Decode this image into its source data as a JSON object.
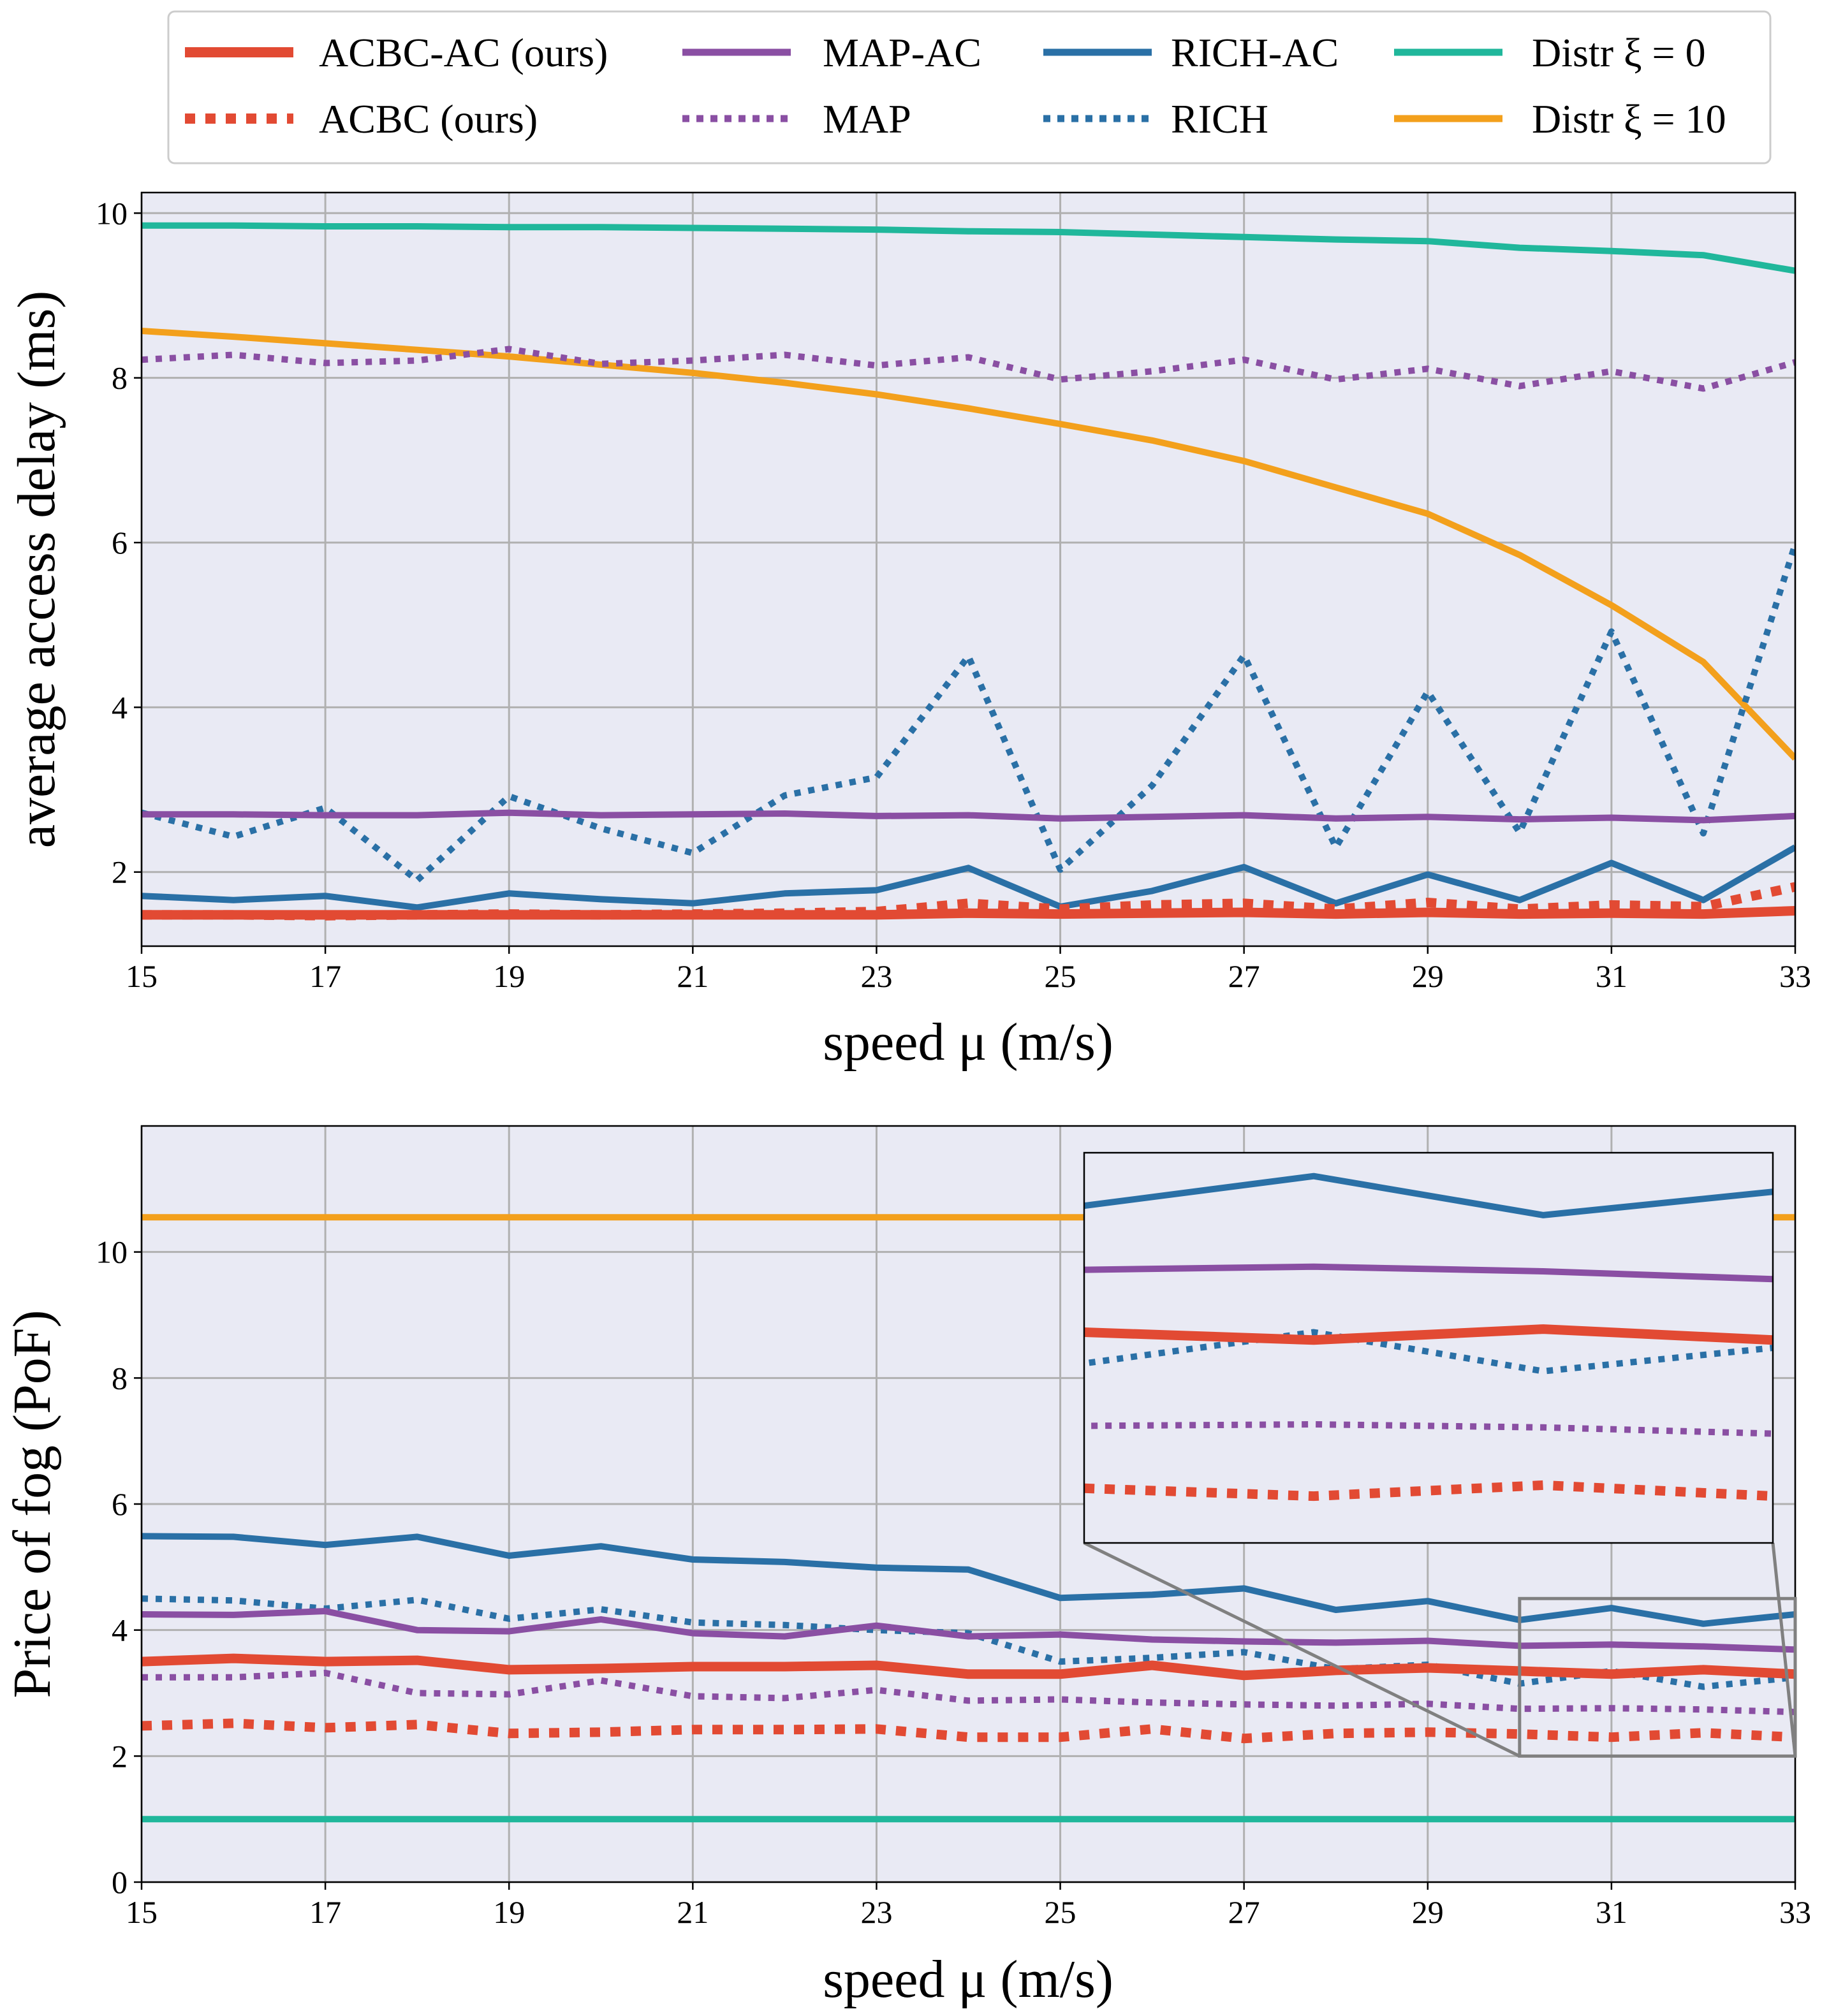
{
  "legend": {
    "placement": "top",
    "entries": [
      {
        "key": "acbc_ac",
        "label": "ACBC-AC (ours)",
        "color": "#e24a33",
        "style": "solid"
      },
      {
        "key": "acbc",
        "label": "ACBC (ours)",
        "color": "#e24a33",
        "style": "dotted"
      },
      {
        "key": "map_ac",
        "label": "MAP-AC",
        "color": "#8a4fa3",
        "style": "solid"
      },
      {
        "key": "map",
        "label": "MAP",
        "color": "#8a4fa3",
        "style": "dotted"
      },
      {
        "key": "rich_ac",
        "label": "RICH-AC",
        "color": "#2a70a6",
        "style": "solid"
      },
      {
        "key": "rich",
        "label": "RICH",
        "color": "#2a70a6",
        "style": "dotted"
      },
      {
        "key": "distr0",
        "label": "Distr ξ = 0",
        "color": "#20b79b",
        "style": "solid"
      },
      {
        "key": "distr10",
        "label": "Distr ξ = 10",
        "color": "#f3a01c",
        "style": "solid"
      }
    ]
  },
  "chart_data": [
    {
      "type": "line",
      "id": "delay",
      "xlabel": "speed μ (m/s)",
      "ylabel": "average access delay (ms)",
      "xlim": [
        15,
        33
      ],
      "ylim": [
        1.1,
        10.25
      ],
      "xticks": [
        "15",
        "17",
        "19",
        "21",
        "23",
        "25",
        "27",
        "29",
        "31",
        "33"
      ],
      "yticks": [
        "2",
        "4",
        "6",
        "8",
        "10"
      ],
      "grid": true,
      "x": [
        15,
        16,
        17,
        18,
        19,
        20,
        21,
        22,
        23,
        24,
        25,
        26,
        27,
        28,
        29,
        30,
        31,
        32,
        33
      ],
      "series": [
        {
          "key": "distr0",
          "values": [
            9.85,
            9.85,
            9.84,
            9.84,
            9.83,
            9.83,
            9.82,
            9.81,
            9.8,
            9.78,
            9.77,
            9.74,
            9.71,
            9.68,
            9.66,
            9.58,
            9.54,
            9.49,
            9.3
          ]
        },
        {
          "key": "distr10",
          "values": [
            8.57,
            8.5,
            8.42,
            8.34,
            8.26,
            8.16,
            8.06,
            7.94,
            7.8,
            7.63,
            7.44,
            7.24,
            6.99,
            6.67,
            6.35,
            5.85,
            5.24,
            4.55,
            3.38
          ]
        },
        {
          "key": "map",
          "values": [
            8.22,
            8.28,
            8.18,
            8.21,
            8.35,
            8.17,
            8.21,
            8.28,
            8.15,
            8.25,
            7.98,
            8.08,
            8.22,
            7.98,
            8.11,
            7.9,
            8.08,
            7.87,
            8.19
          ]
        },
        {
          "key": "rich",
          "values": [
            2.72,
            2.43,
            2.78,
            1.9,
            2.92,
            2.53,
            2.23,
            2.93,
            3.15,
            4.62,
            2.03,
            3.05,
            4.63,
            2.3,
            4.19,
            2.48,
            4.92,
            2.47,
            5.98
          ]
        },
        {
          "key": "map_ac",
          "values": [
            2.7,
            2.7,
            2.69,
            2.69,
            2.72,
            2.69,
            2.7,
            2.71,
            2.68,
            2.69,
            2.65,
            2.67,
            2.69,
            2.65,
            2.67,
            2.64,
            2.66,
            2.63,
            2.68
          ]
        },
        {
          "key": "rich_ac",
          "values": [
            1.71,
            1.66,
            1.71,
            1.57,
            1.74,
            1.67,
            1.62,
            1.74,
            1.78,
            2.05,
            1.58,
            1.77,
            2.06,
            1.62,
            1.97,
            1.66,
            2.11,
            1.66,
            2.3
          ]
        },
        {
          "key": "acbc",
          "values": [
            1.48,
            1.48,
            1.47,
            1.48,
            1.49,
            1.48,
            1.49,
            1.5,
            1.52,
            1.62,
            1.55,
            1.6,
            1.62,
            1.55,
            1.63,
            1.55,
            1.6,
            1.58,
            1.82
          ]
        },
        {
          "key": "acbc_ac",
          "values": [
            1.48,
            1.48,
            1.48,
            1.48,
            1.48,
            1.48,
            1.48,
            1.48,
            1.48,
            1.5,
            1.49,
            1.5,
            1.51,
            1.49,
            1.51,
            1.49,
            1.5,
            1.49,
            1.53
          ]
        }
      ]
    },
    {
      "type": "line",
      "id": "pof",
      "xlabel": "speed μ (m/s)",
      "ylabel": "Price of fog (PoF)",
      "xlim": [
        15,
        33
      ],
      "ylim": [
        0,
        12
      ],
      "xticks": [
        "15",
        "17",
        "19",
        "21",
        "23",
        "25",
        "27",
        "29",
        "31",
        "33"
      ],
      "yticks": [
        "0",
        "2",
        "4",
        "6",
        "8",
        "10"
      ],
      "grid": true,
      "x": [
        15,
        16,
        17,
        18,
        19,
        20,
        21,
        22,
        23,
        24,
        25,
        26,
        27,
        28,
        29,
        30,
        31,
        32,
        33
      ],
      "series": [
        {
          "key": "distr10",
          "values": [
            10.55,
            10.55,
            10.55,
            10.55,
            10.55,
            10.55,
            10.55,
            10.55,
            10.55,
            10.55,
            10.55,
            10.55,
            10.55,
            10.55,
            10.55,
            10.55,
            10.55,
            10.55,
            10.55
          ]
        },
        {
          "key": "distr0",
          "values": [
            1.0,
            1.0,
            1.0,
            1.0,
            1.0,
            1.0,
            1.0,
            1.0,
            1.0,
            1.0,
            1.0,
            1.0,
            1.0,
            1.0,
            1.0,
            1.0,
            1.0,
            1.0,
            1.0
          ]
        },
        {
          "key": "rich_ac",
          "values": [
            5.49,
            5.48,
            5.35,
            5.48,
            5.18,
            5.33,
            5.12,
            5.08,
            4.99,
            4.96,
            4.51,
            4.56,
            4.66,
            4.32,
            4.46,
            4.16,
            4.35,
            4.1,
            4.25
          ]
        },
        {
          "key": "rich",
          "values": [
            4.5,
            4.47,
            4.34,
            4.48,
            4.18,
            4.33,
            4.12,
            4.08,
            4.0,
            3.95,
            3.5,
            3.56,
            3.65,
            3.38,
            3.45,
            3.15,
            3.35,
            3.1,
            3.25
          ]
        },
        {
          "key": "map_ac",
          "values": [
            4.25,
            4.24,
            4.3,
            4.0,
            3.98,
            4.17,
            3.95,
            3.9,
            4.07,
            3.9,
            3.93,
            3.85,
            3.82,
            3.8,
            3.83,
            3.75,
            3.77,
            3.74,
            3.69
          ]
        },
        {
          "key": "acbc_ac",
          "values": [
            3.5,
            3.55,
            3.5,
            3.52,
            3.37,
            3.39,
            3.42,
            3.42,
            3.44,
            3.3,
            3.3,
            3.44,
            3.28,
            3.36,
            3.4,
            3.35,
            3.3,
            3.37,
            3.3
          ]
        },
        {
          "key": "map",
          "values": [
            3.25,
            3.25,
            3.32,
            3.0,
            2.98,
            3.2,
            2.95,
            2.92,
            3.05,
            2.88,
            2.9,
            2.85,
            2.82,
            2.8,
            2.83,
            2.75,
            2.76,
            2.74,
            2.7
          ]
        },
        {
          "key": "acbc",
          "values": [
            2.48,
            2.52,
            2.45,
            2.5,
            2.36,
            2.38,
            2.42,
            2.42,
            2.43,
            2.3,
            2.3,
            2.43,
            2.28,
            2.36,
            2.38,
            2.35,
            2.3,
            2.37,
            2.3
          ]
        }
      ],
      "inset": {
        "xlim": [
          30,
          33
        ],
        "ylim": [
          2.0,
          4.5
        ],
        "source_box_x": [
          30,
          33
        ],
        "source_box_y": [
          2.0,
          4.5
        ]
      }
    }
  ]
}
